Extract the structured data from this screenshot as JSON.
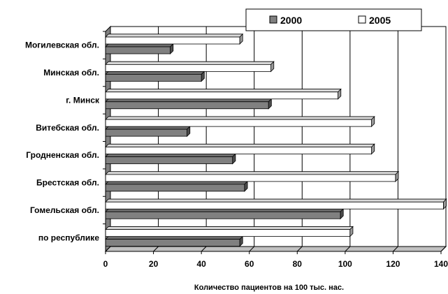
{
  "chart_data": {
    "type": "bar",
    "orientation": "horizontal",
    "style": "3d",
    "categories": [
      "Могилевская обл.",
      "Минская обл.",
      "г. Минск",
      "Витебская обл.",
      "Гродненская обл.",
      "Брестская обл.",
      "Гомельская обл.",
      "по республике"
    ],
    "series": [
      {
        "name": "2000",
        "color": "#808080",
        "values": [
          27,
          40,
          68,
          34,
          53,
          58,
          98,
          56
        ]
      },
      {
        "name": "2005",
        "color": "#ffffff",
        "values": [
          56,
          69,
          97,
          111,
          111,
          121,
          141,
          102
        ]
      }
    ],
    "xlabel": "Количество пациентов на 100 тыс. нас.",
    "ylabel": "",
    "xlim": [
      0,
      140
    ],
    "xticks": [
      "0",
      "20",
      "40",
      "60",
      "80",
      "100",
      "120",
      "140"
    ],
    "grid": true,
    "legend_position": "top-right"
  }
}
